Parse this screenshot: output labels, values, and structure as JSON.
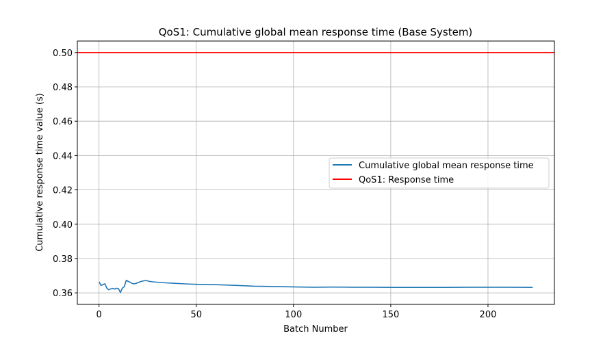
{
  "chart_data": {
    "type": "line",
    "title": "QoS1: Cumulative global mean response time (Base System)",
    "xlabel": "Batch Number",
    "ylabel": "Cumulative response time value (s)",
    "xlim": [
      -11.15,
      234.15
    ],
    "ylim": [
      0.3533,
      0.5067
    ],
    "xticks": [
      0,
      50,
      100,
      150,
      200
    ],
    "yticks": [
      0.36,
      0.38,
      0.4,
      0.42,
      0.44,
      0.46,
      0.48,
      0.5
    ],
    "ytick_labels": [
      "0.36",
      "0.38",
      "0.40",
      "0.42",
      "0.44",
      "0.46",
      "0.48",
      "0.50"
    ],
    "grid": true,
    "legend_position": "center-right",
    "series": [
      {
        "name": "Cumulative global mean response time",
        "color": "#1f77b4",
        "x": [
          0,
          1,
          2,
          3,
          4,
          5,
          6,
          7,
          8,
          9,
          10,
          11,
          12,
          13,
          14,
          15,
          16,
          17,
          18,
          19,
          20,
          22,
          24,
          26,
          28,
          30,
          35,
          40,
          45,
          50,
          55,
          60,
          70,
          80,
          90,
          100,
          110,
          120,
          130,
          140,
          150,
          160,
          170,
          180,
          190,
          200,
          210,
          223
        ],
        "y": [
          0.3665,
          0.3643,
          0.3648,
          0.3653,
          0.3628,
          0.3618,
          0.3623,
          0.3626,
          0.3622,
          0.3627,
          0.3624,
          0.3602,
          0.3628,
          0.3636,
          0.3673,
          0.3667,
          0.3662,
          0.3655,
          0.3653,
          0.3655,
          0.366,
          0.3668,
          0.3672,
          0.3667,
          0.3664,
          0.3662,
          0.3658,
          0.3655,
          0.3652,
          0.365,
          0.3649,
          0.3648,
          0.3644,
          0.3639,
          0.3637,
          0.3635,
          0.3633,
          0.3634,
          0.3633,
          0.3633,
          0.3632,
          0.3632,
          0.3632,
          0.3632,
          0.3633,
          0.3633,
          0.3633,
          0.3632
        ]
      },
      {
        "name": "QoS1: Response time",
        "color": "#ff0000",
        "type": "hline",
        "y": 0.5
      }
    ]
  }
}
